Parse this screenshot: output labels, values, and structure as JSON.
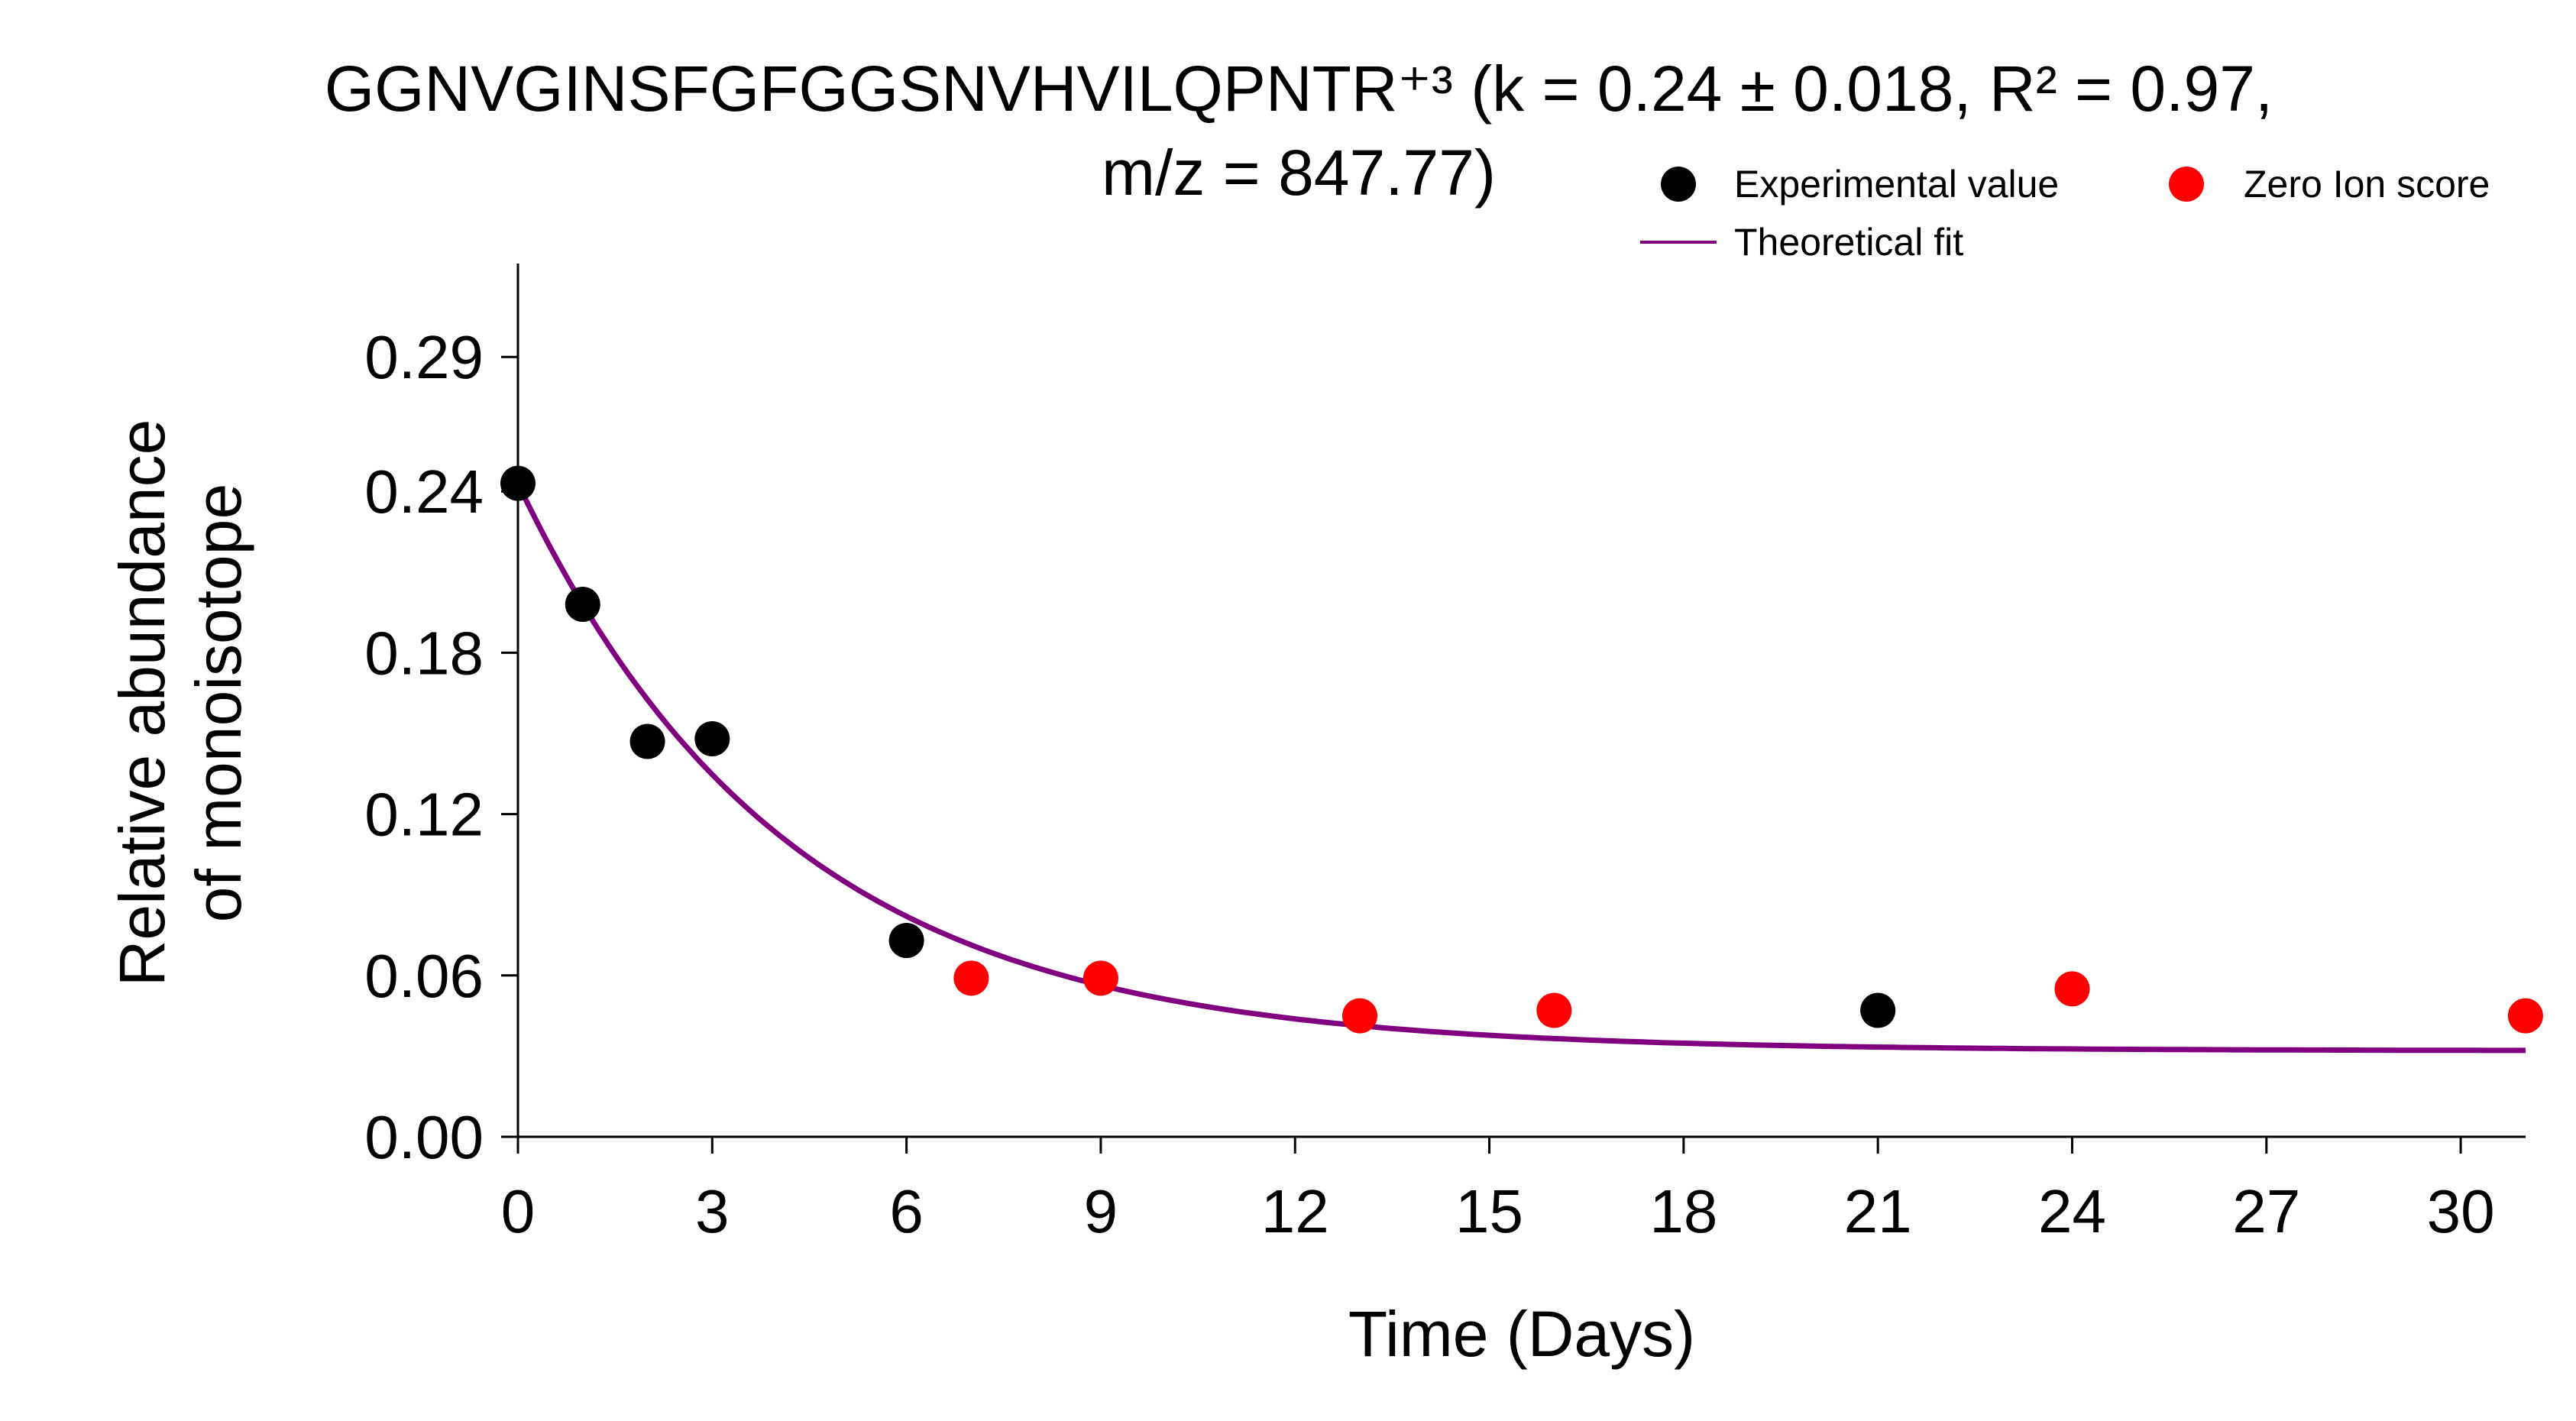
{
  "chart_data": {
    "type": "scatter",
    "title_line1": "GGNVGINSFGFGGSNVHVILQPNTR⁺³ (k = 0.24 ± 0.018, R² = 0.97,",
    "title_line2": "m/z = 847.77)",
    "xlabel": "Time (Days)",
    "ylabel_line1": "Relative abundance",
    "ylabel_line2": "of monoisotope",
    "xlim": [
      0,
      31
    ],
    "ylim": [
      0,
      0.31
    ],
    "x_ticks": [
      0,
      3,
      6,
      9,
      12,
      15,
      18,
      21,
      24,
      27,
      30
    ],
    "x_tick_labels": [
      "0",
      "3",
      "6",
      "9",
      "12",
      "15",
      "18",
      "21",
      "24",
      "27",
      "30"
    ],
    "y_ticks": [
      0,
      0.06,
      0.12,
      0.18,
      0.24,
      0.29
    ],
    "y_tick_labels": [
      "0.00",
      "0.06",
      "0.12",
      "0.18",
      "0.24",
      "0.29"
    ],
    "legend": {
      "position": "top-right",
      "entries": [
        {
          "label": "Experimental value",
          "color": "#000000",
          "marker": "circle"
        },
        {
          "label": "Zero Ion score",
          "color": "#ff0000",
          "marker": "circle"
        },
        {
          "label": "Theoretical fit",
          "color": "#800080",
          "marker": "line"
        }
      ]
    },
    "series": [
      {
        "name": "Experimental value",
        "color": "#000000",
        "points": [
          [
            0,
            0.243
          ],
          [
            1,
            0.198
          ],
          [
            2,
            0.147
          ],
          [
            3,
            0.148
          ],
          [
            6,
            0.073
          ],
          [
            21,
            0.047
          ]
        ]
      },
      {
        "name": "Zero Ion score",
        "color": "#ff0000",
        "points": [
          [
            7,
            0.059
          ],
          [
            9,
            0.059
          ],
          [
            13,
            0.045
          ],
          [
            16,
            0.047
          ],
          [
            24,
            0.055
          ],
          [
            31,
            0.045
          ]
        ]
      },
      {
        "name": "Theoretical fit",
        "color": "#800080",
        "type": "line",
        "function": "exponential_decay",
        "k": 0.24,
        "y0": 0.243,
        "plateau": 0.032,
        "x_range": [
          0,
          31
        ]
      }
    ]
  }
}
